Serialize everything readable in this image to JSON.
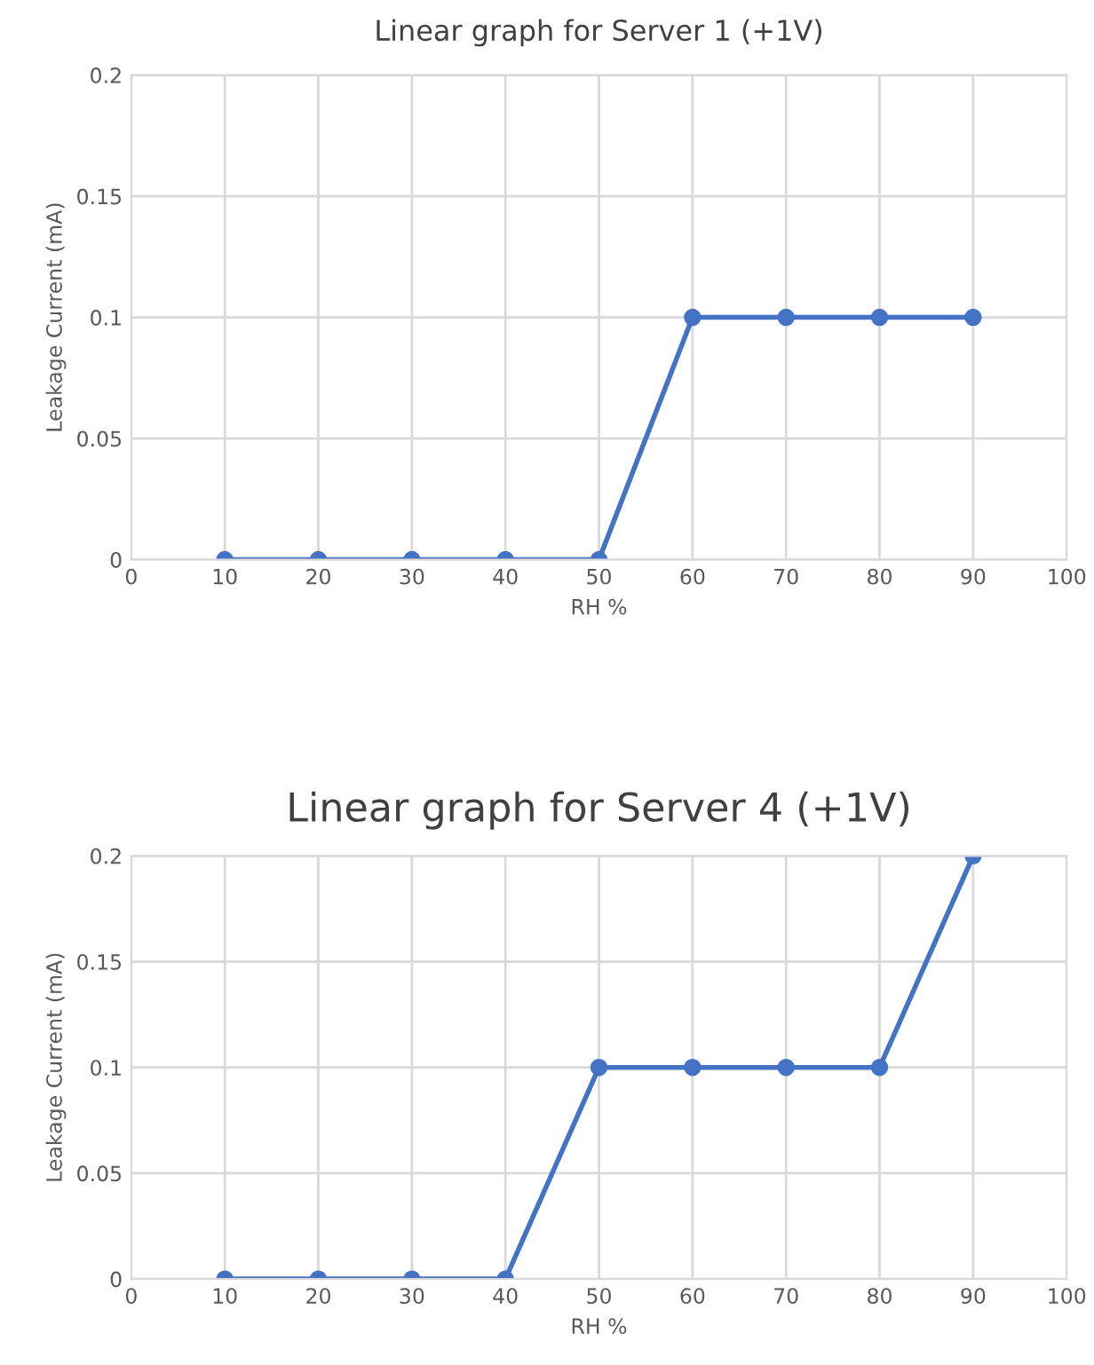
{
  "chart_data": [
    {
      "type": "line",
      "title": "Linear graph for Server 1 (+1V)",
      "xlabel": "RH %",
      "ylabel": "Leakage Current (mA)",
      "x": [
        10,
        20,
        30,
        40,
        50,
        60,
        70,
        80,
        90
      ],
      "series": [
        {
          "color": "#4472c4",
          "values": [
            0,
            0,
            0,
            0,
            0,
            0.1,
            0.1,
            0.1,
            0.1
          ]
        }
      ],
      "xlim": [
        0,
        100
      ],
      "xticks": [
        0,
        10,
        20,
        30,
        40,
        50,
        60,
        70,
        80,
        90,
        100
      ],
      "ylim": [
        0,
        0.2
      ],
      "yticks": [
        0,
        0.05,
        0.1,
        0.15,
        0.2
      ],
      "grid": true,
      "marker": "circle",
      "line_style": "solid"
    },
    {
      "type": "line",
      "title": "Linear graph for Server 4 (+1V)",
      "xlabel": "RH %",
      "ylabel": "Leakage Current (mA)",
      "x": [
        10,
        20,
        30,
        40,
        50,
        60,
        70,
        80,
        90
      ],
      "series": [
        {
          "color": "#4472c4",
          "values": [
            0,
            0,
            0,
            0,
            0.1,
            0.1,
            0.1,
            0.1,
            0.2
          ]
        }
      ],
      "xlim": [
        0,
        100
      ],
      "xticks": [
        0,
        10,
        20,
        30,
        40,
        50,
        60,
        70,
        80,
        90,
        100
      ],
      "ylim": [
        0,
        0.2
      ],
      "yticks": [
        0,
        0.05,
        0.1,
        0.15,
        0.2
      ],
      "grid": true,
      "marker": "circle",
      "line_style": "solid"
    }
  ]
}
